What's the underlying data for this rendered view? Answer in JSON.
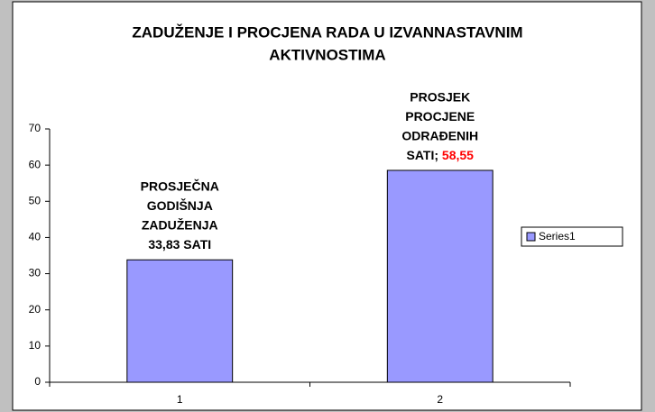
{
  "chart_data": {
    "type": "bar",
    "title": [
      "ZADUŽENJE I PROCJENA RADA U IZVANNASTAVNIM",
      "AKTIVNOSTIMA"
    ],
    "categories": [
      "1",
      "2"
    ],
    "series": [
      {
        "name": "Series1",
        "color": "#9999ff",
        "values": [
          33.83,
          58.55
        ],
        "value_labels": [
          "33,83 SATI",
          "58,55"
        ]
      }
    ],
    "annotations": [
      [
        "PROSJEČNA",
        "GODIŠNJA",
        "ZADUŽENJA"
      ],
      [
        "PROSJEK",
        "PROCJENE",
        "ODRAĐENIH",
        "SATI;"
      ]
    ],
    "value_label_color": "#ff0000",
    "ylim": [
      0,
      70
    ],
    "yticks": [
      0,
      10,
      20,
      30,
      40,
      50,
      60,
      70
    ],
    "grid": false,
    "legend": "right"
  }
}
